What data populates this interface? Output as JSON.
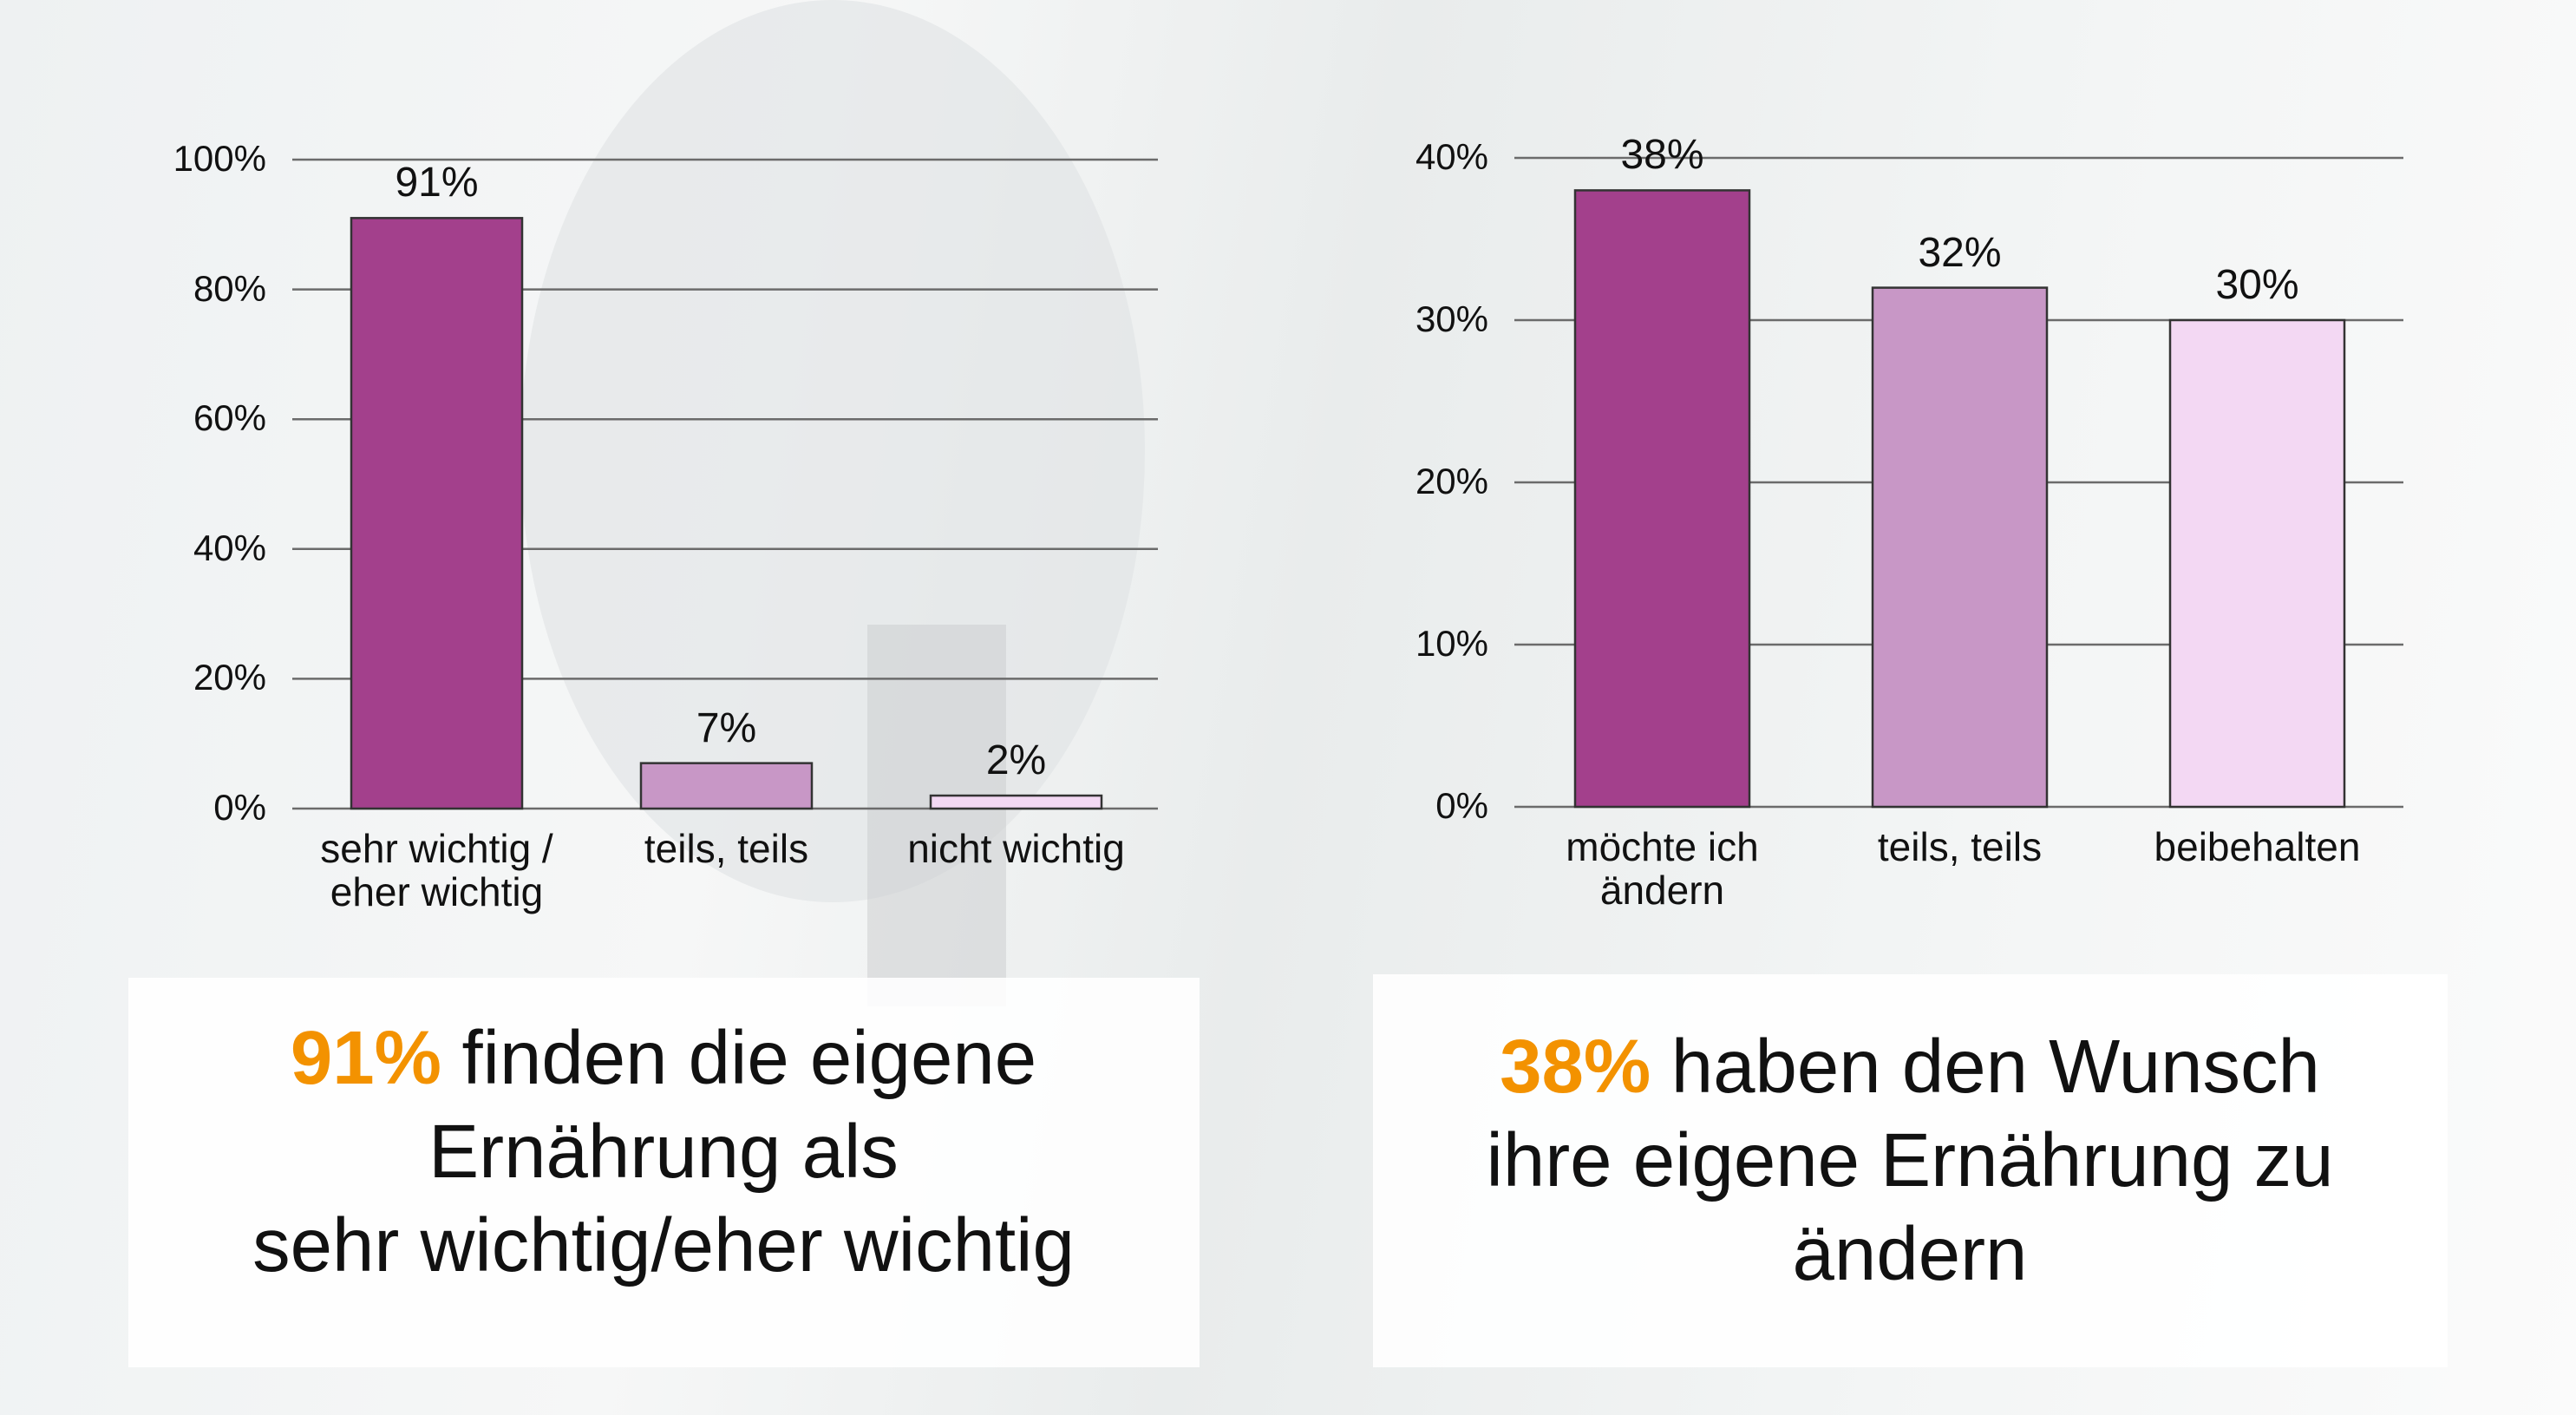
{
  "chart_data": [
    {
      "type": "bar",
      "categories": [
        "sehr wichtig / eher wichtig",
        "teils, teils",
        "nicht wichtig"
      ],
      "values": [
        91,
        7,
        2
      ],
      "value_labels": [
        "91%",
        "7%",
        "2%"
      ],
      "colors": [
        "#a3408c",
        "#c897c6",
        "#f3d8f3"
      ],
      "ylim": [
        0,
        100
      ],
      "yticks": [
        {
          "value": 0,
          "label": "0%"
        },
        {
          "value": 20,
          "label": "20%"
        },
        {
          "value": 40,
          "label": "40%"
        },
        {
          "value": 60,
          "label": "60%"
        },
        {
          "value": 80,
          "label": "80%"
        },
        {
          "value": 100,
          "label": "100%"
        }
      ],
      "grid": true,
      "annotation": {
        "highlight": "91%",
        "lines": [
          "finden die eigene",
          "Ernährung als",
          "sehr wichtig/eher wichtig"
        ]
      }
    },
    {
      "type": "bar",
      "categories": [
        "möchte ich ändern",
        "teils, teils",
        "beibehalten"
      ],
      "values": [
        38,
        32,
        30
      ],
      "value_labels": [
        "38%",
        "32%",
        "30%"
      ],
      "colors": [
        "#a3408c",
        "#c897c6",
        "#f3d8f3"
      ],
      "ylim": [
        0,
        40
      ],
      "yticks": [
        {
          "value": 0,
          "label": "0%"
        },
        {
          "value": 10,
          "label": "10%"
        },
        {
          "value": 20,
          "label": "20%"
        },
        {
          "value": 30,
          "label": "30%"
        },
        {
          "value": 40,
          "label": "40%"
        }
      ],
      "grid": true,
      "annotation": {
        "highlight": "38%",
        "lines": [
          "haben den Wunsch",
          "ihre eigene Ernährung zu",
          "ändern"
        ]
      }
    }
  ]
}
